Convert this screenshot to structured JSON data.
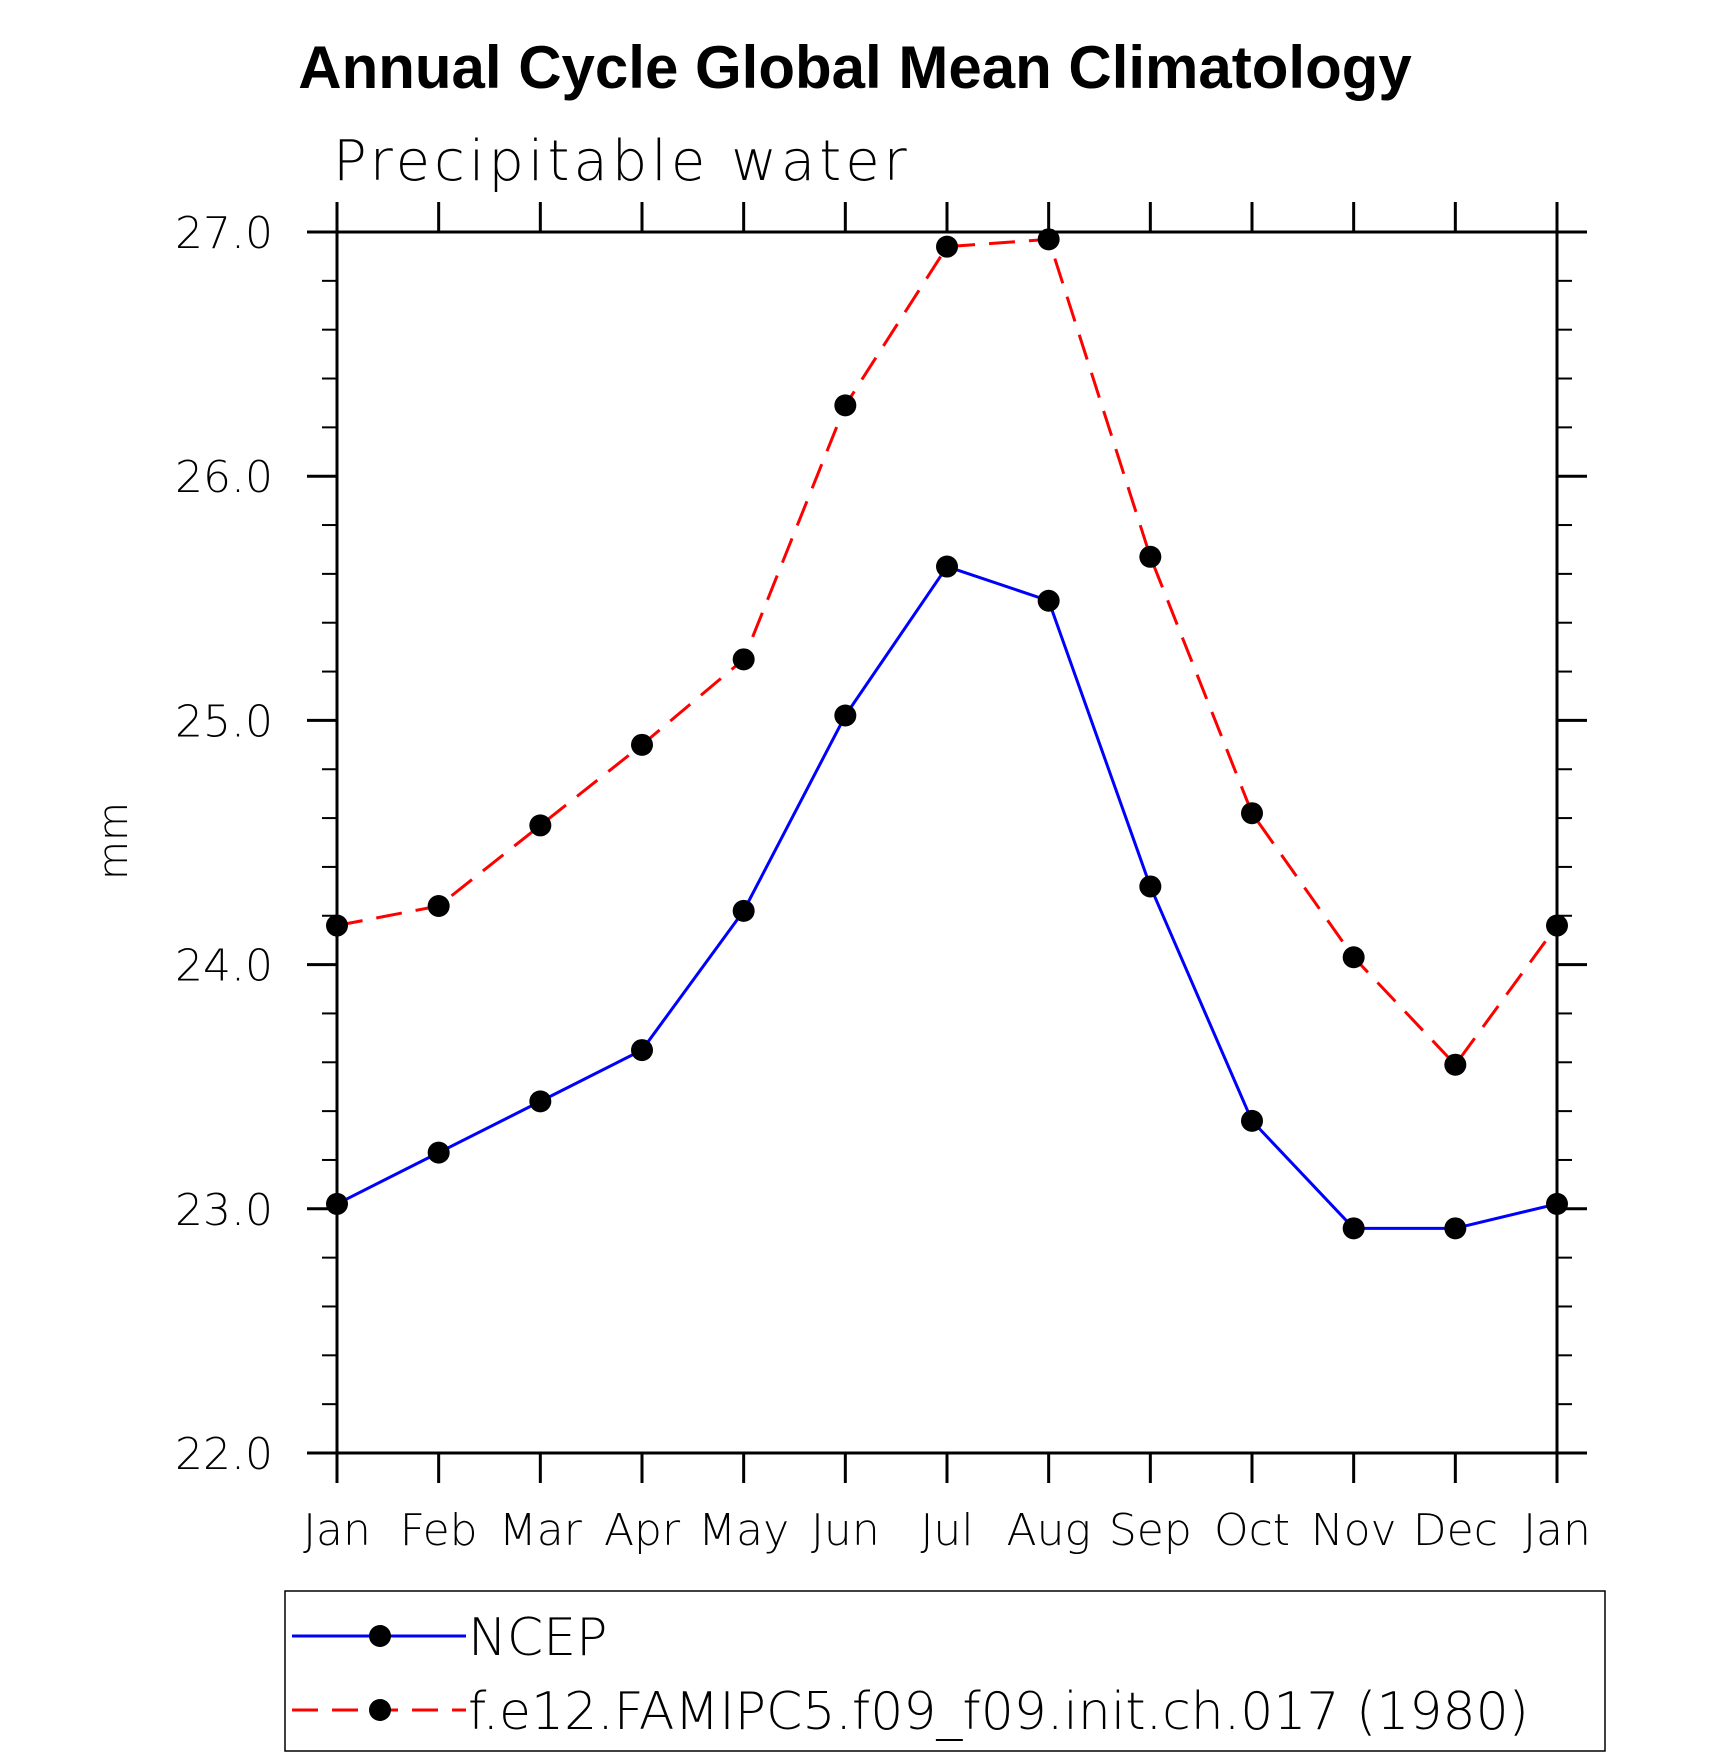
{
  "chart_data": {
    "type": "line",
    "title": "Annual Cycle Global Mean Climatology",
    "subtitle": "Precipitable water",
    "xlabel": "",
    "ylabel": "mm",
    "categories": [
      "Jan",
      "Feb",
      "Mar",
      "Apr",
      "May",
      "Jun",
      "Jul",
      "Aug",
      "Sep",
      "Oct",
      "Nov",
      "Dec",
      "Jan"
    ],
    "ylim": [
      22.0,
      27.0
    ],
    "yticks": [
      "22.0",
      "23.0",
      "24.0",
      "25.0",
      "26.0",
      "27.0"
    ],
    "ytick_values": [
      22.0,
      23.0,
      24.0,
      25.0,
      26.0,
      27.0
    ],
    "grid": false,
    "legend_position": "bottom",
    "series": [
      {
        "name": "NCEP",
        "color": "#0000ff",
        "dash": "solid",
        "values": [
          23.02,
          23.23,
          23.44,
          23.65,
          24.22,
          25.02,
          25.63,
          25.49,
          24.32,
          23.36,
          22.92,
          22.92,
          23.02
        ]
      },
      {
        "name": "f.e12.FAMIPC5.f09_f09.init.ch.017 (1980)",
        "color": "#ff0000",
        "dash": "dashed",
        "values": [
          24.16,
          24.24,
          24.57,
          24.9,
          25.25,
          26.29,
          26.94,
          26.97,
          25.67,
          24.62,
          24.03,
          23.59,
          24.16
        ]
      }
    ]
  }
}
